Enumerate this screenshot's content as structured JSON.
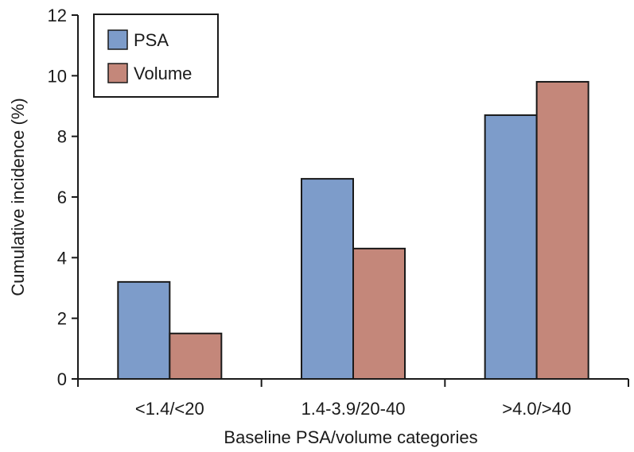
{
  "chart_data": {
    "type": "bar",
    "title": "",
    "xlabel": "Baseline PSA/volume categories",
    "ylabel": "Cumulative incidence (%)",
    "categories": [
      "<1.4/<20",
      "1.4-3.9/20-40",
      ">4.0/>40"
    ],
    "series": [
      {
        "name": "PSA",
        "values": [
          3.2,
          6.6,
          8.7
        ],
        "color": "#7d9cca"
      },
      {
        "name": "Volume",
        "values": [
          1.5,
          4.3,
          9.8
        ],
        "color": "#c4877a"
      }
    ],
    "ylim": [
      0,
      12
    ],
    "yticks": [
      "0",
      "2",
      "4",
      "6",
      "8",
      "10",
      "12"
    ],
    "grid": false,
    "legend_position": "top-left"
  }
}
